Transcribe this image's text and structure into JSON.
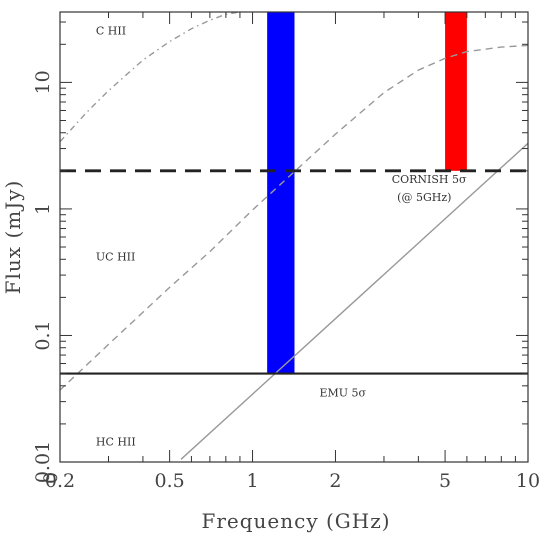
{
  "chart_data": {
    "type": "line",
    "xlabel": "Frequency (GHz)",
    "ylabel": "Flux (mJy)",
    "xscale": "log",
    "yscale": "log",
    "xlim": [
      0.2,
      10
    ],
    "ylim": [
      0.01,
      36
    ],
    "xticks": [
      {
        "value": 0.2,
        "label": "0.2"
      },
      {
        "value": 0.5,
        "label": "0.5"
      },
      {
        "value": 1,
        "label": "1"
      },
      {
        "value": 2,
        "label": "2"
      },
      {
        "value": 5,
        "label": "5"
      },
      {
        "value": 10,
        "label": "10"
      }
    ],
    "yticks": [
      {
        "value": 0.01,
        "label": "0.01"
      },
      {
        "value": 0.1,
        "label": "0.1"
      },
      {
        "value": 1,
        "label": "1"
      },
      {
        "value": 10,
        "label": "10"
      }
    ],
    "origin_label": "0",
    "grid": false,
    "annotations": [
      {
        "text": "C HII",
        "x": 0.27,
        "y": 24
      },
      {
        "text": "UC HII",
        "x": 0.27,
        "y": 0.39
      },
      {
        "text": "HC HII",
        "x": 0.27,
        "y": 0.0135
      },
      {
        "text": "CORNISH 5σ",
        "x": 3.2,
        "y": 1.6
      },
      {
        "text": "(@ 5GHz)",
        "x": 3.35,
        "y": 1.15
      },
      {
        "text": "EMU 5σ",
        "x": 1.75,
        "y": 0.033
      }
    ],
    "bands": [
      {
        "name": "blue band",
        "color": "#0000ff",
        "xmin": 1.13,
        "xmax": 1.42,
        "ymin": 0.05,
        "ymax": 36
      },
      {
        "name": "red band",
        "color": "#ff0000",
        "xmin": 5.0,
        "xmax": 6.0,
        "ymin": 2.0,
        "ymax": 36
      }
    ],
    "hlines": [
      {
        "name": "CORNISH 5σ",
        "y": 2.0,
        "style": "dashed",
        "color": "#222222"
      },
      {
        "name": "EMU 5σ",
        "y": 0.05,
        "style": "solid",
        "color": "#222222"
      }
    ],
    "series": [
      {
        "style": "dash-dot",
        "color": "#999999",
        "x": [
          0.2,
          0.25,
          0.3,
          0.4,
          0.5,
          0.6,
          0.7,
          0.8,
          1.0,
          1.2
        ],
        "y": [
          3.4,
          5.8,
          8.6,
          15.0,
          21.0,
          26.5,
          31.0,
          34.5,
          37.5,
          39.0
        ]
      },
      {
        "style": "dashed",
        "color": "#999999",
        "x": [
          0.2,
          0.3,
          0.5,
          0.7,
          1.0,
          1.5,
          2.0,
          3.0,
          4.0,
          5.0,
          6.0,
          8.0,
          10.0
        ],
        "y": [
          0.037,
          0.085,
          0.24,
          0.46,
          0.98,
          2.2,
          3.9,
          8.3,
          12.5,
          15.5,
          17.5,
          19.0,
          19.6
        ]
      },
      {
        "style": "solid",
        "color": "#999999",
        "x": [
          0.55,
          10.0
        ],
        "y": [
          0.0105,
          3.3
        ]
      }
    ],
    "colors": {
      "axis": "#333333",
      "curve": "#999999",
      "threshold": "#222222",
      "blue_band": "#0000ff",
      "red_band": "#ff0000"
    }
  }
}
